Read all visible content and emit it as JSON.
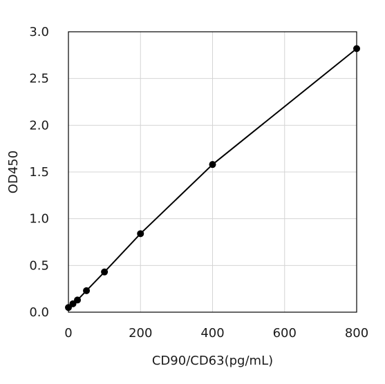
{
  "chart_data": {
    "type": "line",
    "title": "",
    "xlabel": "CD90/CD63(pg/mL)",
    "ylabel": "OD450",
    "xlim": [
      0,
      800
    ],
    "ylim": [
      0,
      3.0
    ],
    "xticks": [
      "0",
      "200",
      "400",
      "600",
      "800"
    ],
    "xtick_values": [
      0,
      200,
      400,
      600,
      800
    ],
    "yticks": [
      "0.0",
      "0.5",
      "1.0",
      "1.5",
      "2.0",
      "2.5",
      "3.0"
    ],
    "ytick_values": [
      0,
      0.5,
      1.0,
      1.5,
      2.0,
      2.5,
      3.0
    ],
    "grid": true,
    "legend": "none",
    "series": [
      {
        "color": "#000000",
        "x": [
          0,
          12.5,
          25,
          50,
          100,
          200,
          400,
          800
        ],
        "y": [
          0.05,
          0.09,
          0.13,
          0.23,
          0.43,
          0.84,
          1.58,
          2.82
        ]
      }
    ]
  }
}
